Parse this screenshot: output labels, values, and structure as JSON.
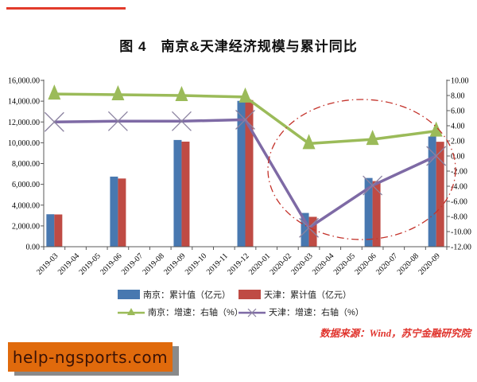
{
  "title": "图 4　南京&天津经济规模与累计同比",
  "source_note": "数据来源：Wind，苏宁金融研究院",
  "source_note_color": "#e0332c",
  "watermark": {
    "top_line_color": "#e23b2b",
    "badge_label": "help-ngsports.com",
    "badge_bg": "#e06a0c",
    "badge_text_color": "#3a1206",
    "badge_shadow_color": "#8a8a8a"
  },
  "chart_data": {
    "type": "bar+line combo",
    "title": "图 4　南京&天津经济规模与累计同比",
    "x_categories": [
      "2019-03",
      "2019-04",
      "2019-05",
      "2019-06",
      "2019-07",
      "2019-08",
      "2019-09",
      "2019-10",
      "2019-11",
      "2019-12",
      "2020-01",
      "2020-02",
      "2020-03",
      "2020-04",
      "2020-05",
      "2020-06",
      "2020-07",
      "2020-08",
      "2020-09"
    ],
    "quarterly_categories": [
      "2019-03",
      "2019-06",
      "2019-09",
      "2019-12",
      "2020-03",
      "2020-06",
      "2020-09"
    ],
    "series": [
      {
        "name": "南京：累计值（亿元）",
        "type": "bar",
        "axis": "left",
        "color": "#4878b0",
        "values": [
          3122,
          6743,
          10267,
          14030,
          3247,
          6612,
          10601
        ]
      },
      {
        "name": "天津：累计值（亿元）",
        "type": "bar",
        "axis": "left",
        "color": "#bf4b44",
        "values": [
          3102,
          6560,
          10108,
          14104,
          2874,
          6309,
          10095
        ]
      },
      {
        "name": "南京：增速：右轴（%）",
        "type": "line",
        "marker": "triangle",
        "axis": "right",
        "color": "#9bbb59",
        "marker_color": "#9bbb59",
        "values": [
          8.2,
          8.1,
          8.0,
          7.8,
          1.65,
          2.2,
          3.3
        ]
      },
      {
        "name": "天津：增速：右轴（%）",
        "type": "line",
        "marker": "x",
        "axis": "right",
        "color": "#7e6aa5",
        "marker_color": "#8b82a0",
        "values": [
          4.5,
          4.6,
          4.6,
          4.8,
          -9.5,
          -3.9,
          0.0
        ]
      }
    ],
    "left_axis": {
      "min": 0,
      "max": 16000,
      "step": 2000,
      "tick_labels": [
        "16,000.00",
        "14,000.00",
        "12,000.00",
        "10,000.00",
        "8,000.00",
        "6,000.00",
        "4,000.00",
        "2,000.00",
        "0.00"
      ]
    },
    "right_axis": {
      "min": -12,
      "max": 10,
      "step": 2,
      "tick_labels": [
        "10.00",
        "8.00",
        "6.00",
        "4.00",
        "2.00",
        "0.00",
        "-2.00",
        "-4.00",
        "-6.00",
        "-8.00",
        "-10.00",
        "-12.00"
      ]
    },
    "grid": false,
    "legend_position": "bottom",
    "annotation": {
      "shape": "dash-dot ellipse",
      "color": "#c4332b",
      "around": "2020-02 through 2020-09 data region"
    }
  }
}
